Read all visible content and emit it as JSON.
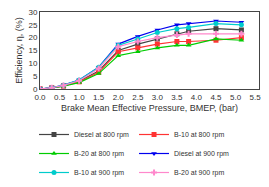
{
  "chart_data": {
    "type": "line",
    "xlabel": "Brake Mean Effective Pressure, BMEP, (bar)",
    "ylabel": "Efficiency, η, (%)",
    "xlim": [
      0.0,
      5.6
    ],
    "ylim": [
      0,
      30
    ],
    "xticks": [
      {
        "value": 0.0,
        "label": "0.0"
      },
      0.5,
      {
        "value": 1.0,
        "label": "1.0"
      },
      1.5,
      {
        "value": 2.0,
        "label": "2.0"
      },
      2.5,
      {
        "value": 3.0,
        "label": "3.0"
      },
      3.5,
      {
        "value": 4.0,
        "label": "4.0"
      },
      4.5,
      {
        "value": 5.0,
        "label": "5.0"
      },
      5.5
    ],
    "yticks": [
      0,
      5,
      10,
      15,
      20,
      25,
      30
    ],
    "grid": false,
    "x": [
      0.0,
      0.3,
      0.6,
      1.0,
      1.5,
      2.0,
      2.5,
      3.0,
      3.5,
      3.8,
      4.5,
      5.15
    ],
    "series": [
      {
        "name": "Diesel at 800 rpm",
        "color": "#444444",
        "marker": "square",
        "values": [
          0.0,
          0.4,
          1.2,
          3.0,
          7.0,
          15.0,
          17.5,
          19.5,
          21.5,
          22.5,
          23.5,
          23.0
        ]
      },
      {
        "name": "B-10 at 800 rpm",
        "color": "#ff3333",
        "marker": "square",
        "values": [
          0.0,
          0.4,
          1.2,
          2.8,
          6.5,
          14.5,
          16.0,
          17.5,
          18.5,
          18.5,
          19.0,
          20.0
        ]
      },
      {
        "name": "B-20 at 800 rpm",
        "color": "#00cc00",
        "marker": "triangle-up",
        "values": [
          0.0,
          0.4,
          1.1,
          2.5,
          6.0,
          13.0,
          14.5,
          16.0,
          17.0,
          17.0,
          19.5,
          19.0
        ]
      },
      {
        "name": "Diesel at 900 rpm",
        "color": "#0000ee",
        "marker": "triangle-down",
        "values": [
          0.0,
          0.5,
          1.5,
          3.5,
          8.5,
          17.5,
          20.5,
          23.0,
          25.0,
          25.5,
          26.5,
          26.0
        ]
      },
      {
        "name": "B-10 at 900 rpm",
        "color": "#00cccc",
        "marker": "circle",
        "values": [
          0.0,
          0.5,
          1.5,
          3.5,
          8.5,
          17.0,
          19.5,
          22.0,
          23.5,
          24.0,
          25.5,
          25.0
        ]
      },
      {
        "name": "B-20 at 900 rpm",
        "color": "#ff88cc",
        "marker": "cross",
        "values": [
          0.0,
          0.5,
          1.4,
          3.2,
          8.0,
          16.5,
          18.5,
          20.0,
          21.0,
          21.5,
          21.5,
          21.5
        ]
      }
    ]
  }
}
